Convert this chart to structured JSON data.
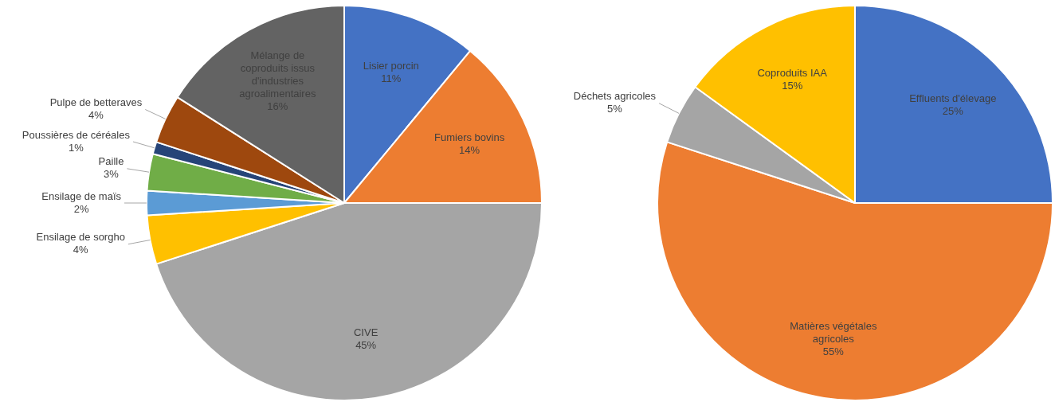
{
  "chart_data": [
    {
      "type": "pie",
      "categories": [
        "Lisier porcin",
        "Fumiers bovins",
        "CIVE",
        "Ensilage de sorgho",
        "Ensilage de maïs",
        "Paille",
        "Poussières de céréales",
        "Pulpe de betteraves",
        "Mélange de coproduits issus d'industries agroalimentaires"
      ],
      "values": [
        11,
        14,
        45,
        4,
        2,
        3,
        1,
        4,
        16
      ],
      "colors": [
        "#4472c4",
        "#ed7d31",
        "#a5a5a5",
        "#ffc000",
        "#5b9bd5",
        "#70ad47",
        "#264478",
        "#9e480e",
        "#636363"
      ],
      "value_labels": [
        "11%",
        "14%",
        "45%",
        "4%",
        "2%",
        "3%",
        "1%",
        "4%",
        "16%"
      ],
      "legend": false
    },
    {
      "type": "pie",
      "categories": [
        "Effluents d'élevage",
        "Matières végétales agricoles",
        "Déchets agricoles",
        "Coproduits IAA"
      ],
      "values": [
        25,
        55,
        5,
        15
      ],
      "colors": [
        "#4472c4",
        "#ed7d31",
        "#a5a5a5",
        "#ffc000"
      ],
      "value_labels": [
        "25%",
        "55%",
        "5%",
        "15%"
      ],
      "legend": false
    }
  ]
}
